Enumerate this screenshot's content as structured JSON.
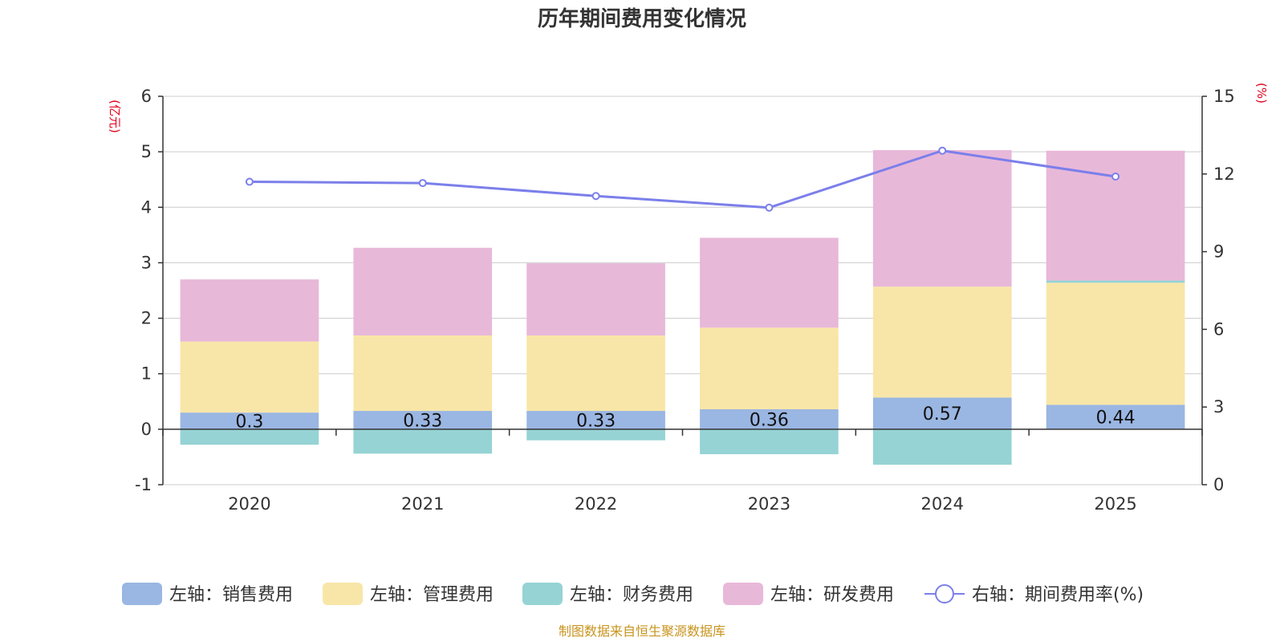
{
  "chart_data": {
    "type": "bar",
    "title": "历年期间费用变化情况",
    "categories": [
      "2020",
      "2021",
      "2022",
      "2023",
      "2024",
      "2025"
    ],
    "left_unit": "(亿元)",
    "right_unit": "(%)",
    "ylim_left": [
      -1,
      6
    ],
    "left_ticks": [
      "-1",
      "0",
      "1",
      "2",
      "3",
      "4",
      "5",
      "6"
    ],
    "ylim_right": [
      0,
      15
    ],
    "right_ticks": [
      "0",
      "3",
      "6",
      "9",
      "12",
      "15"
    ],
    "series": [
      {
        "name": "左轴：销售费用",
        "type": "bar",
        "axis": "left",
        "color": "#9ab6e2",
        "values": [
          0.3,
          0.33,
          0.33,
          0.36,
          0.57,
          0.44
        ],
        "labels": [
          "0.3",
          "0.33",
          "0.33",
          "0.36",
          "0.57",
          "0.44"
        ]
      },
      {
        "name": "左轴：管理费用",
        "type": "bar",
        "axis": "left",
        "color": "#f8e6a8",
        "values": [
          1.28,
          1.36,
          1.36,
          1.47,
          2.0,
          2.2
        ]
      },
      {
        "name": "左轴：财务费用",
        "type": "bar",
        "axis": "left",
        "color": "#96d3d4",
        "values": [
          -0.28,
          -0.44,
          -0.2,
          -0.45,
          -0.64,
          0.04
        ]
      },
      {
        "name": "左轴：研发费用",
        "type": "bar",
        "axis": "left",
        "color": "#e8b8d9",
        "values": [
          1.12,
          1.58,
          1.3,
          1.62,
          2.46,
          2.34
        ]
      },
      {
        "name": "右轴：期间费用率(%)",
        "type": "line",
        "axis": "right",
        "color": "#7b7fea",
        "values": [
          11.7,
          11.65,
          11.15,
          10.7,
          12.9,
          11.9
        ]
      }
    ],
    "grid": true,
    "legend_position": "bottom"
  },
  "source": "制图数据来自恒生聚源数据库"
}
